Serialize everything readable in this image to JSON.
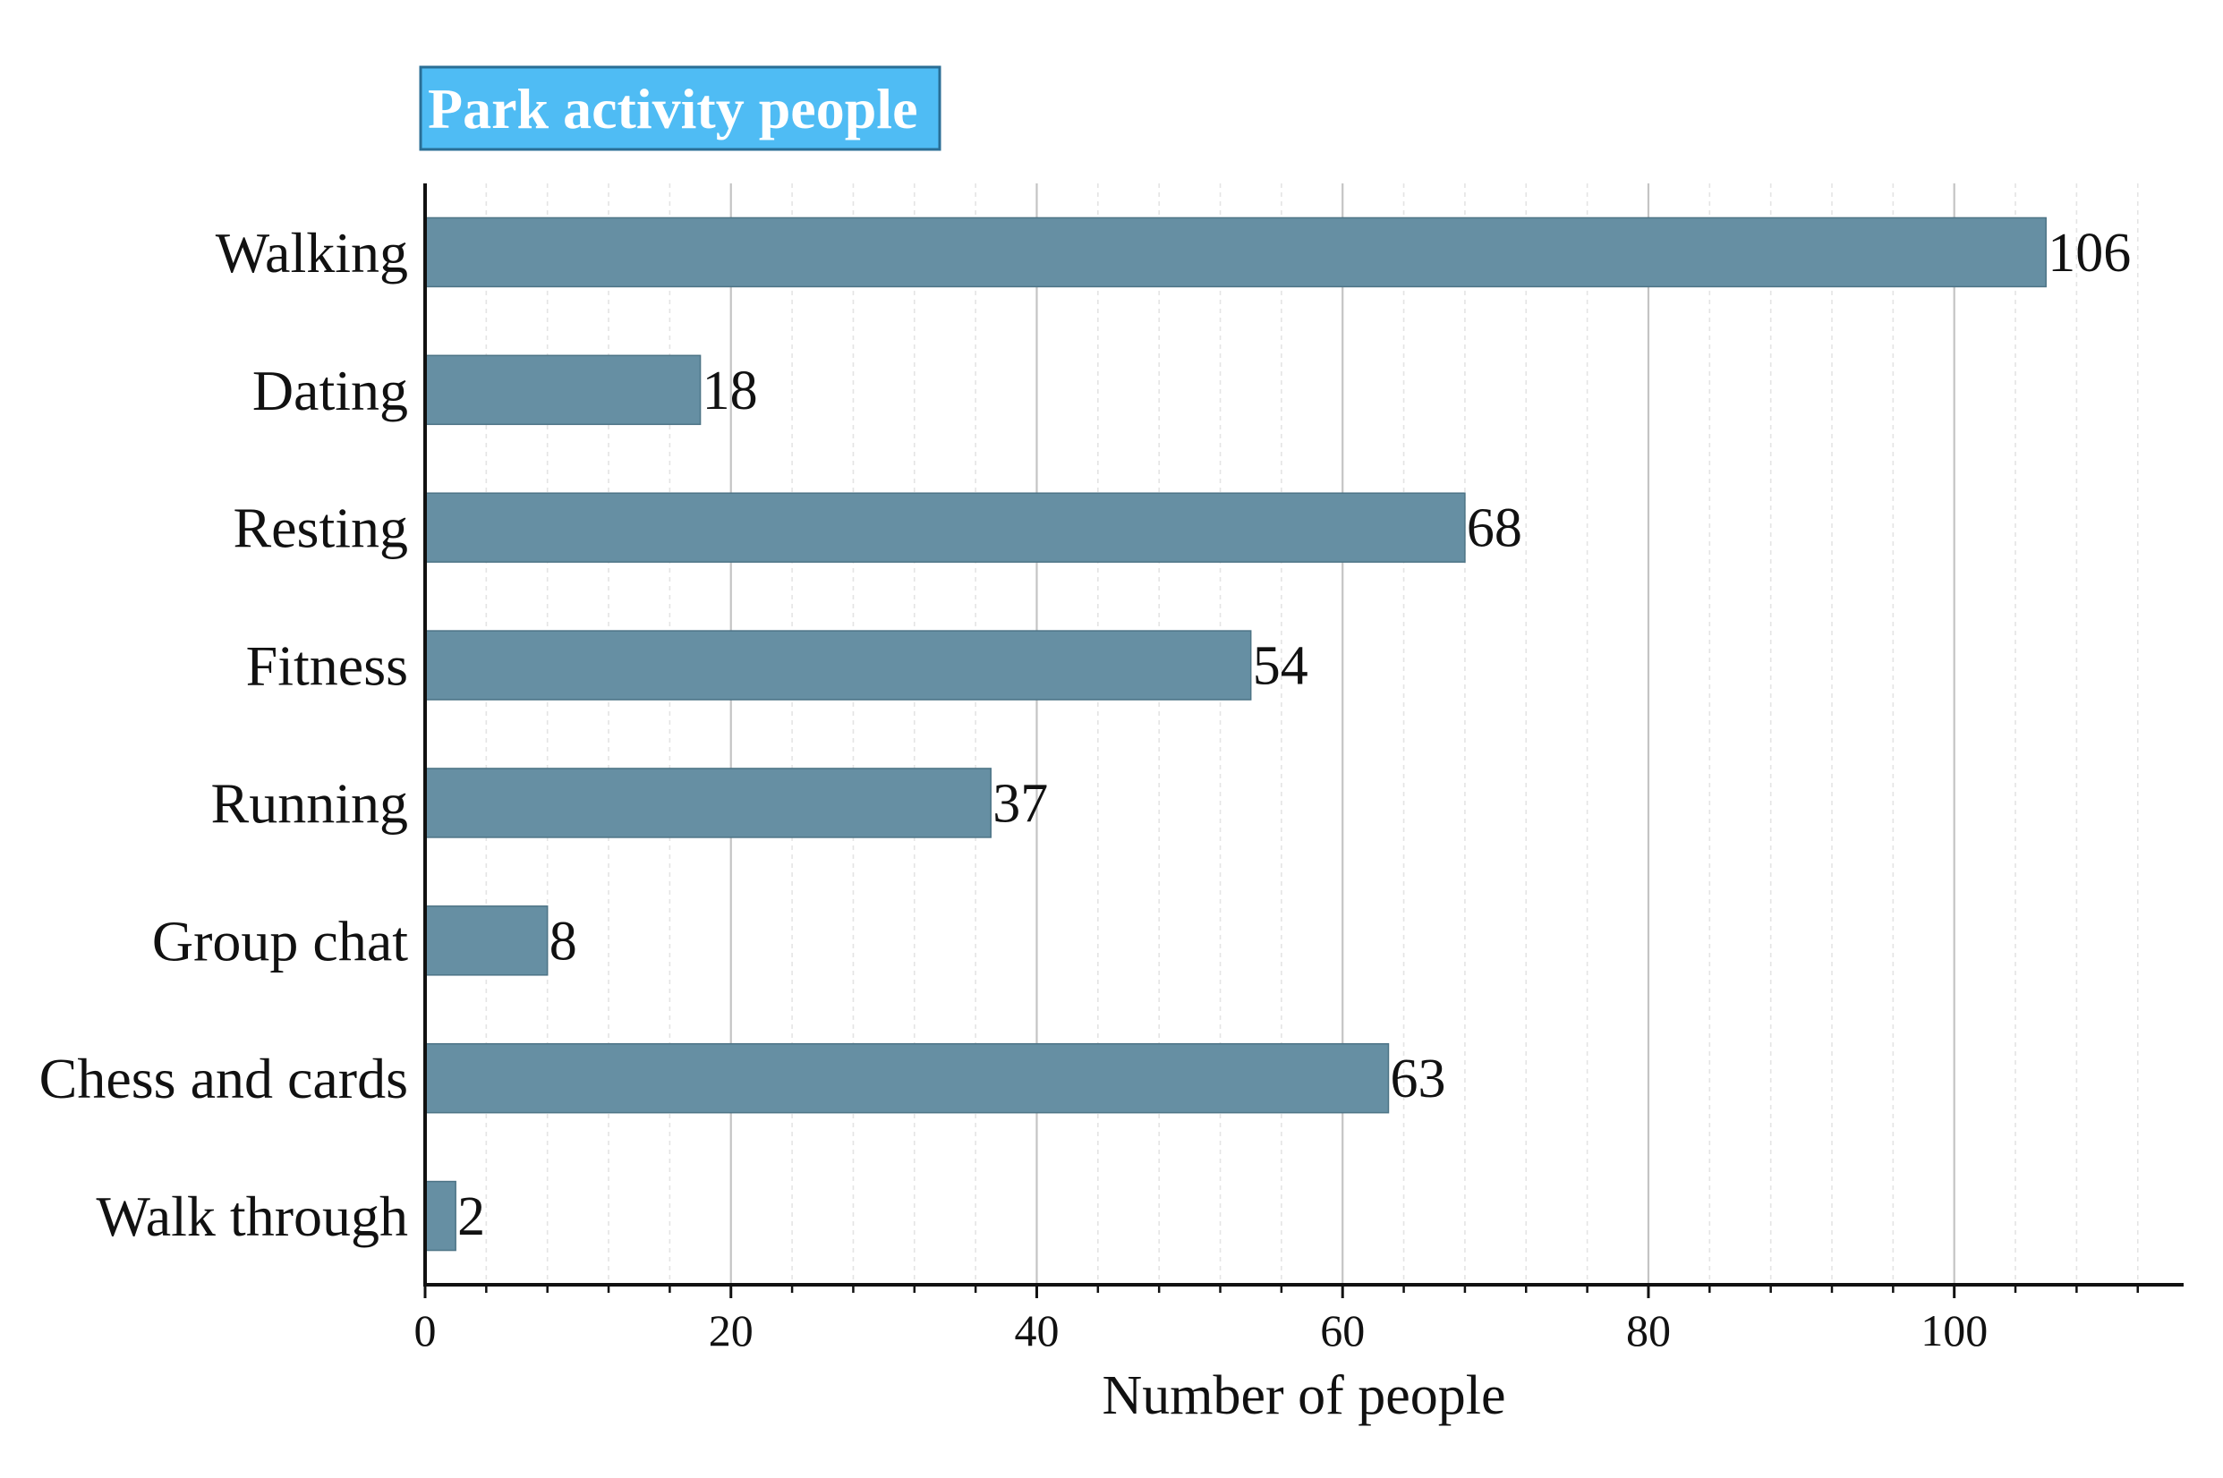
{
  "chart_data": {
    "type": "bar",
    "orientation": "horizontal",
    "title": "",
    "legend": {
      "label": "Park activity people",
      "placement": "top-left",
      "color": "#4fbcf4"
    },
    "categories": [
      "Walking",
      "Dating",
      "Resting",
      "Fitness",
      "Running",
      "Group chat",
      "Chess and cards",
      "Walk through"
    ],
    "series": [
      {
        "name": "Park activity people",
        "color": "#668fa3",
        "values": [
          106,
          18,
          68,
          54,
          37,
          8,
          63,
          2
        ]
      }
    ],
    "xlabel": "Number of people",
    "ylabel": "",
    "xlim": [
      0,
      115
    ],
    "xticks": [
      0,
      20,
      40,
      60,
      80,
      100
    ],
    "minor_tick_step": 4,
    "grid": true,
    "data_labels": true
  }
}
